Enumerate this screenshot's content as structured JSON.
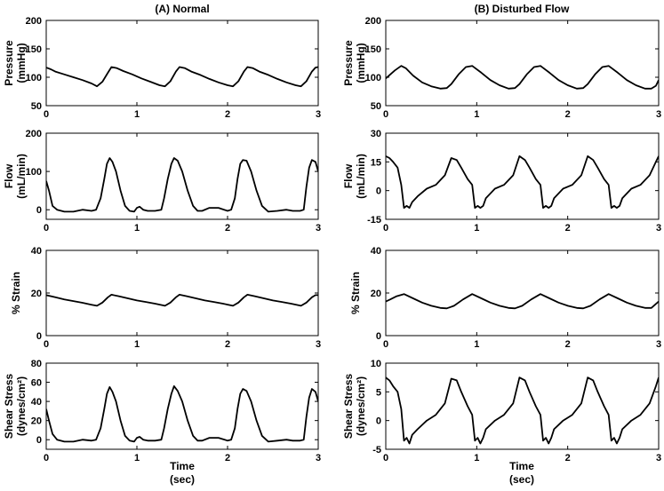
{
  "columns": [
    {
      "title": "(A) Normal"
    },
    {
      "title": "(B) Disturbed Flow"
    }
  ],
  "xlabel": {
    "line1": "Time",
    "line2": "(sec)"
  },
  "chart_data": [
    {
      "type": "line",
      "column": 0,
      "row": 0,
      "ylabel": [
        "Pressure",
        "(mmHg)"
      ],
      "xlim": [
        0,
        3
      ],
      "ylim": [
        50,
        200
      ],
      "xticks": [
        "0",
        "1",
        "2",
        "3"
      ],
      "yticks": [
        "50",
        "100",
        "150",
        "200"
      ],
      "x": [
        0,
        0.05,
        0.1,
        0.2,
        0.3,
        0.4,
        0.5,
        0.56,
        0.62,
        0.68,
        0.72,
        0.78,
        0.85,
        0.95,
        1.05,
        1.15,
        1.25,
        1.31,
        1.37,
        1.43,
        1.47,
        1.53,
        1.6,
        1.7,
        1.8,
        1.9,
        2.0,
        2.06,
        2.12,
        2.18,
        2.22,
        2.28,
        2.35,
        2.45,
        2.55,
        2.65,
        2.75,
        2.81,
        2.87,
        2.93,
        2.97,
        3.0
      ],
      "y": [
        117,
        114,
        110,
        105,
        100,
        95,
        89,
        84,
        92,
        108,
        118,
        116,
        111,
        105,
        98,
        92,
        86,
        84,
        93,
        110,
        118,
        116,
        110,
        104,
        97,
        91,
        86,
        84,
        93,
        110,
        118,
        116,
        110,
        104,
        97,
        91,
        86,
        84,
        93,
        110,
        117,
        118
      ]
    },
    {
      "type": "line",
      "column": 0,
      "row": 1,
      "ylabel": [
        "Flow",
        "(mL/min)"
      ],
      "xlim": [
        0,
        3
      ],
      "ylim": [
        -25,
        200
      ],
      "xticks": [
        "0",
        "1",
        "2",
        "3"
      ],
      "yticks": [
        "0",
        "100",
        "200"
      ],
      "x": [
        0,
        0.03,
        0.07,
        0.12,
        0.2,
        0.3,
        0.4,
        0.5,
        0.55,
        0.6,
        0.64,
        0.67,
        0.7,
        0.73,
        0.77,
        0.82,
        0.87,
        0.92,
        0.97,
        1.0,
        1.03,
        1.07,
        1.12,
        1.2,
        1.27,
        1.3,
        1.34,
        1.38,
        1.41,
        1.45,
        1.5,
        1.56,
        1.62,
        1.67,
        1.72,
        1.8,
        1.9,
        2.0,
        2.04,
        2.08,
        2.11,
        2.14,
        2.17,
        2.21,
        2.26,
        2.32,
        2.38,
        2.45,
        2.55,
        2.65,
        2.72,
        2.8,
        2.84,
        2.87,
        2.9,
        2.93,
        2.97,
        3.0
      ],
      "y": [
        75,
        50,
        10,
        0,
        -5,
        -5,
        0,
        -3,
        0,
        30,
        80,
        120,
        135,
        125,
        100,
        50,
        10,
        -3,
        -5,
        5,
        8,
        0,
        -3,
        -3,
        0,
        30,
        80,
        120,
        135,
        128,
        100,
        50,
        10,
        -3,
        -3,
        5,
        5,
        -3,
        0,
        30,
        80,
        120,
        130,
        128,
        100,
        50,
        10,
        -5,
        -3,
        0,
        -3,
        -3,
        0,
        60,
        110,
        130,
        125,
        100
      ]
    },
    {
      "type": "line",
      "column": 0,
      "row": 2,
      "ylabel": [
        "% Strain"
      ],
      "xlim": [
        0,
        3
      ],
      "ylim": [
        0,
        40
      ],
      "xticks": [
        "0",
        "1",
        "2",
        "3"
      ],
      "yticks": [
        "0",
        "20",
        "40"
      ],
      "x": [
        0,
        0.1,
        0.2,
        0.3,
        0.4,
        0.5,
        0.56,
        0.62,
        0.68,
        0.72,
        0.8,
        0.9,
        1.0,
        1.1,
        1.2,
        1.31,
        1.37,
        1.43,
        1.47,
        1.55,
        1.65,
        1.75,
        1.85,
        1.95,
        2.06,
        2.12,
        2.18,
        2.22,
        2.3,
        2.4,
        2.5,
        2.6,
        2.7,
        2.81,
        2.87,
        2.93,
        2.97,
        3.0
      ],
      "y": [
        19,
        18,
        17,
        16.2,
        15.4,
        14.5,
        14,
        15.5,
        18,
        19.2,
        18.5,
        17.5,
        16.5,
        15.8,
        15,
        14,
        15.5,
        18,
        19.2,
        18.5,
        17.5,
        16.5,
        15.8,
        15,
        14,
        15.5,
        18,
        19.2,
        18.5,
        17.5,
        16.5,
        15.8,
        15,
        14,
        15.5,
        18,
        19,
        19
      ]
    },
    {
      "type": "line",
      "column": 0,
      "row": 3,
      "ylabel": [
        "Shear Stress",
        "(dynes/cm²)"
      ],
      "xlim": [
        0,
        3
      ],
      "ylim": [
        -10,
        80
      ],
      "xticks": [
        "0",
        "1",
        "2",
        "3"
      ],
      "yticks": [
        "0",
        "20",
        "40",
        "60",
        "80"
      ],
      "x": [
        0,
        0.03,
        0.07,
        0.12,
        0.2,
        0.3,
        0.4,
        0.5,
        0.55,
        0.6,
        0.64,
        0.67,
        0.7,
        0.73,
        0.77,
        0.82,
        0.87,
        0.92,
        0.97,
        1.0,
        1.03,
        1.07,
        1.12,
        1.2,
        1.27,
        1.3,
        1.34,
        1.38,
        1.41,
        1.45,
        1.5,
        1.56,
        1.62,
        1.67,
        1.72,
        1.8,
        1.9,
        2.0,
        2.04,
        2.08,
        2.11,
        2.14,
        2.17,
        2.21,
        2.26,
        2.32,
        2.38,
        2.45,
        2.55,
        2.65,
        2.72,
        2.8,
        2.84,
        2.87,
        2.9,
        2.93,
        2.97,
        3.0
      ],
      "y": [
        32,
        20,
        6,
        0,
        -2,
        -2,
        0,
        -1,
        0,
        12,
        32,
        48,
        55,
        50,
        40,
        20,
        4,
        -1,
        -2,
        2,
        3,
        0,
        -1,
        -1,
        0,
        12,
        32,
        48,
        56,
        51,
        40,
        20,
        4,
        -1,
        -1,
        2,
        2,
        -1,
        0,
        12,
        32,
        48,
        53,
        51,
        40,
        20,
        4,
        -2,
        -1,
        0,
        -1,
        -1,
        0,
        24,
        44,
        53,
        50,
        40
      ]
    },
    {
      "type": "line",
      "column": 1,
      "row": 0,
      "ylabel": [
        "Pressure",
        "(mmHg)"
      ],
      "xlim": [
        0,
        3
      ],
      "ylim": [
        50,
        200
      ],
      "xticks": [
        "0",
        "1",
        "2",
        "3"
      ],
      "yticks": [
        "50",
        "100",
        "150",
        "200"
      ],
      "x": [
        0,
        0.05,
        0.1,
        0.17,
        0.22,
        0.3,
        0.4,
        0.5,
        0.6,
        0.67,
        0.72,
        0.8,
        0.88,
        0.95,
        1.05,
        1.15,
        1.25,
        1.35,
        1.42,
        1.47,
        1.55,
        1.63,
        1.7,
        1.8,
        1.9,
        2.0,
        2.1,
        2.17,
        2.22,
        2.3,
        2.38,
        2.45,
        2.55,
        2.65,
        2.75,
        2.85,
        2.92,
        2.97,
        3.0
      ],
      "y": [
        98,
        105,
        112,
        120,
        116,
        103,
        91,
        84,
        80,
        81,
        88,
        105,
        118,
        120,
        108,
        95,
        86,
        80,
        81,
        88,
        105,
        118,
        120,
        108,
        95,
        86,
        80,
        81,
        88,
        105,
        118,
        120,
        108,
        95,
        86,
        80,
        80,
        85,
        95
      ]
    },
    {
      "type": "line",
      "column": 1,
      "row": 1,
      "ylabel": [
        "Flow",
        "(mL/min)"
      ],
      "xlim": [
        0,
        3
      ],
      "ylim": [
        -15,
        30
      ],
      "xticks": [
        "0",
        "1",
        "2",
        "3"
      ],
      "yticks": [
        "-15",
        "0",
        "15",
        "30"
      ],
      "x": [
        0,
        0.04,
        0.08,
        0.13,
        0.17,
        0.2,
        0.23,
        0.26,
        0.29,
        0.35,
        0.45,
        0.55,
        0.65,
        0.72,
        0.78,
        0.83,
        0.9,
        0.95,
        0.98,
        1.01,
        1.04,
        1.07,
        1.1,
        1.2,
        1.3,
        1.4,
        1.47,
        1.53,
        1.58,
        1.65,
        1.7,
        1.73,
        1.76,
        1.79,
        1.82,
        1.85,
        1.95,
        2.05,
        2.15,
        2.22,
        2.28,
        2.33,
        2.4,
        2.45,
        2.48,
        2.51,
        2.54,
        2.57,
        2.6,
        2.7,
        2.8,
        2.9,
        2.97,
        3.0
      ],
      "y": [
        18,
        17,
        15,
        12,
        3,
        -9,
        -8,
        -9,
        -6,
        -3,
        1,
        3,
        8,
        17,
        16,
        12,
        6,
        3,
        -9,
        -8,
        -9,
        -8,
        -4,
        1,
        3,
        8,
        18,
        16,
        12,
        6,
        3,
        -9,
        -8,
        -9,
        -8,
        -4,
        1,
        3,
        8,
        18,
        16,
        12,
        6,
        3,
        -9,
        -8,
        -9,
        -8,
        -4,
        1,
        3,
        8,
        15,
        18
      ]
    },
    {
      "type": "line",
      "column": 1,
      "row": 2,
      "ylabel": [
        "% Strain"
      ],
      "xlim": [
        0,
        3
      ],
      "ylim": [
        0,
        40
      ],
      "xticks": [
        "0",
        "1",
        "2",
        "3"
      ],
      "yticks": [
        "0",
        "20",
        "40"
      ],
      "x": [
        0,
        0.05,
        0.12,
        0.2,
        0.3,
        0.4,
        0.5,
        0.6,
        0.67,
        0.75,
        0.85,
        0.95,
        1.05,
        1.15,
        1.25,
        1.35,
        1.42,
        1.5,
        1.6,
        1.7,
        1.8,
        1.9,
        2.0,
        2.1,
        2.17,
        2.25,
        2.35,
        2.45,
        2.55,
        2.65,
        2.75,
        2.85,
        2.92,
        3.0
      ],
      "y": [
        16,
        17,
        18.5,
        19.5,
        17.5,
        15.5,
        14,
        13,
        12.8,
        14,
        17,
        19.5,
        17.5,
        15.5,
        14,
        13,
        12.8,
        14,
        17,
        19.5,
        17.5,
        15.5,
        14,
        13,
        12.8,
        14,
        17,
        19.5,
        17.5,
        15.5,
        14,
        13,
        13,
        16
      ]
    },
    {
      "type": "line",
      "column": 1,
      "row": 3,
      "ylabel": [
        "Shear Stress",
        "(dynes/cm²)"
      ],
      "xlim": [
        0,
        3
      ],
      "ylim": [
        -5,
        10
      ],
      "xticks": [
        "0",
        "1",
        "2",
        "3"
      ],
      "yticks": [
        "-5",
        "0",
        "5",
        "10"
      ],
      "x": [
        0,
        0.04,
        0.08,
        0.13,
        0.17,
        0.2,
        0.23,
        0.26,
        0.29,
        0.35,
        0.45,
        0.55,
        0.65,
        0.72,
        0.78,
        0.83,
        0.9,
        0.95,
        0.98,
        1.01,
        1.04,
        1.07,
        1.1,
        1.2,
        1.3,
        1.4,
        1.47,
        1.53,
        1.58,
        1.65,
        1.7,
        1.73,
        1.76,
        1.79,
        1.82,
        1.85,
        1.95,
        2.05,
        2.15,
        2.22,
        2.28,
        2.33,
        2.4,
        2.45,
        2.48,
        2.51,
        2.54,
        2.57,
        2.6,
        2.7,
        2.8,
        2.9,
        2.97,
        3.0
      ],
      "y": [
        7.5,
        7,
        6,
        5,
        2,
        -3.5,
        -3,
        -4,
        -2.5,
        -1.5,
        0,
        1,
        3,
        7.3,
        7,
        5,
        2.5,
        1,
        -3.5,
        -3,
        -4,
        -3,
        -1.5,
        0,
        1,
        3,
        7.5,
        7,
        5,
        2.5,
        1,
        -3.5,
        -3,
        -4,
        -3,
        -1.5,
        0,
        1,
        3,
        7.5,
        7,
        5,
        2.5,
        1,
        -3.5,
        -3,
        -4,
        -3,
        -1.5,
        0,
        1,
        3,
        6,
        7.5
      ]
    }
  ]
}
